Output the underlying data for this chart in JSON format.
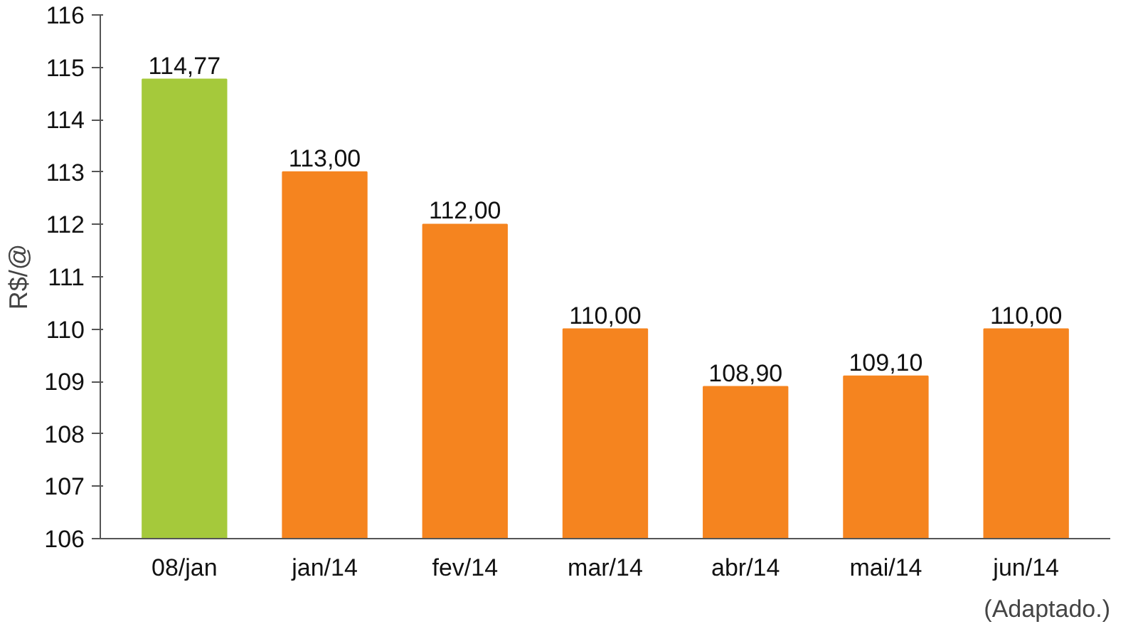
{
  "chart_data": {
    "type": "bar",
    "ylabel": "R$/@",
    "categories": [
      "08/jan",
      "jan/14",
      "fev/14",
      "mar/14",
      "abr/14",
      "mai/14",
      "jun/14"
    ],
    "values": [
      114.77,
      113.0,
      112.0,
      110.0,
      108.9,
      109.1,
      110.0
    ],
    "colors": [
      "#a5c93b",
      "#f5841f",
      "#f5841f",
      "#f5841f",
      "#f5841f",
      "#f5841f",
      "#f5841f"
    ],
    "value_labels": [
      "114,77",
      "113,00",
      "112,00",
      "110,00",
      "108,90",
      "109,10",
      "110,00"
    ],
    "ylim": [
      106,
      116
    ],
    "yticks": [
      106,
      107,
      108,
      109,
      110,
      111,
      112,
      113,
      114,
      115,
      116
    ],
    "grid": false,
    "annotations": [
      "(Adaptado.)"
    ]
  }
}
